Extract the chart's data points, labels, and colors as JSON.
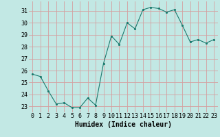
{
  "x": [
    0,
    1,
    2,
    3,
    4,
    5,
    6,
    7,
    8,
    9,
    10,
    11,
    12,
    13,
    14,
    15,
    16,
    17,
    18,
    19,
    20,
    21,
    22,
    23
  ],
  "y": [
    25.7,
    25.5,
    24.3,
    23.2,
    23.3,
    22.9,
    22.9,
    23.7,
    23.1,
    26.6,
    28.9,
    28.2,
    30.0,
    29.5,
    31.1,
    31.3,
    31.2,
    30.9,
    31.1,
    29.8,
    28.4,
    28.6,
    28.3,
    28.6
  ],
  "line_color": "#1a7a6e",
  "marker": ".",
  "bg_color": "#c2e8e4",
  "grid_color": "#d4a0a0",
  "xlabel": "Humidex (Indice chaleur)",
  "xlabel_fontsize": 7,
  "tick_fontsize": 6,
  "ylim": [
    22.5,
    31.8
  ],
  "xlim": [
    -0.5,
    23.5
  ],
  "yticks": [
    23,
    24,
    25,
    26,
    27,
    28,
    29,
    30,
    31
  ],
  "xticks": [
    0,
    1,
    2,
    3,
    4,
    5,
    6,
    7,
    8,
    9,
    10,
    11,
    12,
    13,
    14,
    15,
    16,
    17,
    18,
    19,
    20,
    21,
    22,
    23
  ]
}
